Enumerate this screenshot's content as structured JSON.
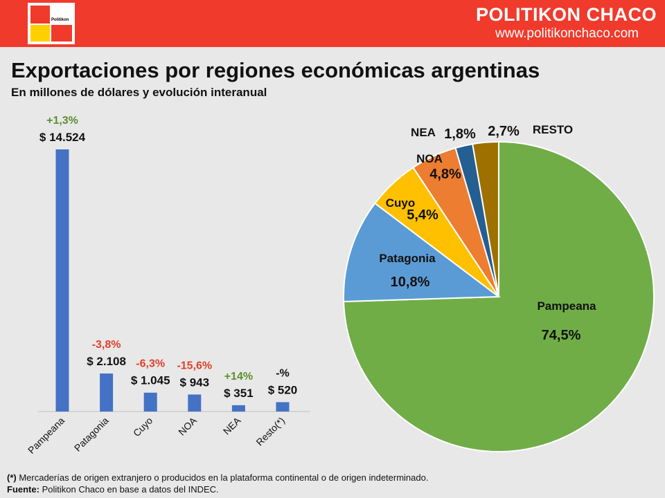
{
  "header": {
    "logo_text": "Politikon",
    "brand": "POLITIKON CHACO",
    "site": "www.politikonchaco.com",
    "colors": {
      "header_bg": "#f03a2c",
      "logo_yellow": "#ffd000"
    }
  },
  "title": "Exportaciones por regiones económicas argentinas",
  "subtitle": "En millones de dólares y evolución interanual",
  "chart_data": [
    {
      "type": "bar",
      "categories": [
        "Pampeana",
        "Patagonia",
        "Cuyo",
        "NOA",
        "NEA",
        "Resto(*)"
      ],
      "values": [
        14524,
        2108,
        1045,
        943,
        351,
        520
      ],
      "value_labels": [
        "$ 14.524",
        "$ 2.108",
        "$ 1.045",
        "$ 943",
        "$ 351",
        "$ 520"
      ],
      "change_labels": [
        "+1,3%",
        "-3,8%",
        "-6,3%",
        "-15,6%",
        "+14%",
        "-%"
      ],
      "change_colors": [
        "#5b8f2e",
        "#e0402a",
        "#e0402a",
        "#e0402a",
        "#5b8f2e",
        "#111111"
      ],
      "bar_color": "#4472c4",
      "ylim": [
        0,
        14524
      ],
      "grid": false
    },
    {
      "type": "pie",
      "labels": [
        "Pampeana",
        "Patagonia",
        "Cuyo",
        "NOA",
        "NEA",
        "RESTO"
      ],
      "values": [
        74.5,
        10.8,
        5.4,
        4.8,
        1.8,
        2.7
      ],
      "value_labels": [
        "74,5%",
        "10,8%",
        "5,4%",
        "4,8%",
        "1,8%",
        "2,7%"
      ],
      "colors": [
        "#70ad47",
        "#5b9bd5",
        "#ffc000",
        "#ed7d31",
        "#255e91",
        "#9e7000"
      ]
    }
  ],
  "footer": {
    "note_marker": "(*)",
    "note_text": " Mercaderías de origen extranjero o producidos en la plataforma continental o de origen indeterminado.",
    "source_label": "Fuente:",
    "source_text": " Politikon Chaco en base a datos del INDEC."
  }
}
